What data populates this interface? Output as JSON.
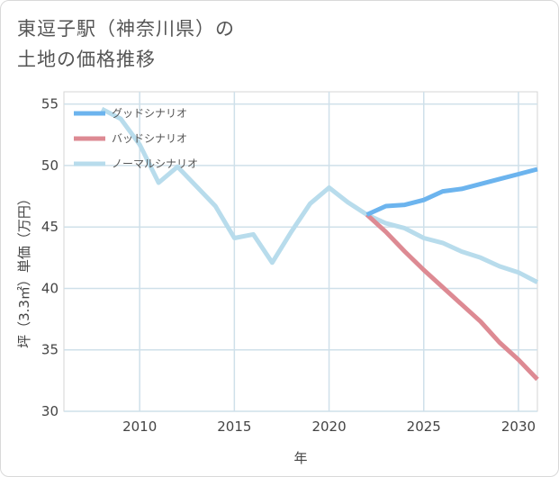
{
  "title_lines": [
    "東逗子駅（神奈川県）の",
    "土地の価格推移"
  ],
  "chart_data": {
    "type": "line",
    "xlabel": "年",
    "ylabel": "坪（3.3㎡）単価（万円）",
    "xlim": [
      2006,
      2031
    ],
    "ylim": [
      30,
      56
    ],
    "xticks": [
      2010,
      2015,
      2020,
      2025,
      2030
    ],
    "yticks": [
      30,
      35,
      40,
      45,
      50,
      55
    ],
    "grid": true,
    "legend_position": "top-left",
    "series": [
      {
        "name": "グッドシナリオ",
        "color": "#6cb4ee",
        "x": [
          2022,
          2023,
          2024,
          2025,
          2026,
          2027,
          2028,
          2029,
          2030,
          2031
        ],
        "y": [
          46.0,
          46.7,
          46.8,
          47.2,
          47.9,
          48.1,
          48.5,
          48.9,
          49.3,
          49.7
        ]
      },
      {
        "name": "バッドシナリオ",
        "color": "#dd8a93",
        "x": [
          2022,
          2023,
          2024,
          2025,
          2026,
          2027,
          2028,
          2029,
          2030,
          2031
        ],
        "y": [
          46.0,
          44.6,
          43.0,
          41.5,
          40.1,
          38.7,
          37.3,
          35.6,
          34.2,
          32.6
        ]
      },
      {
        "name": "ノーマルシナリオ",
        "color": "#b8dcec",
        "x": [
          2008,
          2009,
          2010,
          2011,
          2012,
          2013,
          2014,
          2015,
          2016,
          2017,
          2018,
          2019,
          2020,
          2021,
          2022,
          2023,
          2024,
          2025,
          2026,
          2027,
          2028,
          2029,
          2030,
          2031
        ],
        "y": [
          54.6,
          53.8,
          51.7,
          48.6,
          49.9,
          48.3,
          46.7,
          44.1,
          44.4,
          42.1,
          44.6,
          46.9,
          48.2,
          47.0,
          46.0,
          45.3,
          44.9,
          44.1,
          43.7,
          43.0,
          42.5,
          41.8,
          41.3,
          40.5
        ]
      }
    ]
  }
}
